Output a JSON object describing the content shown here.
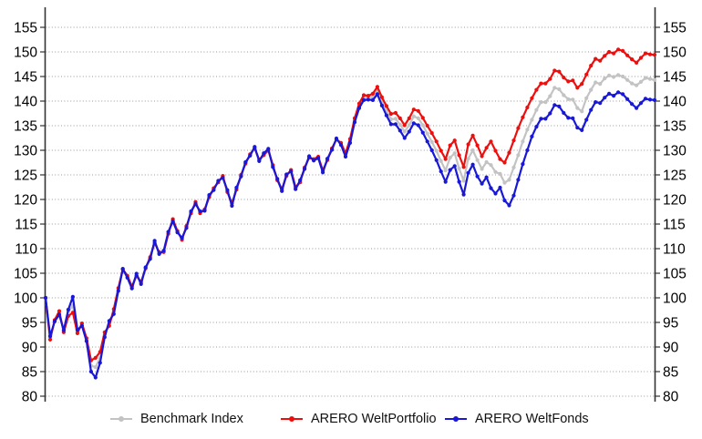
{
  "chart_data": {
    "type": "line",
    "title": "",
    "xlabel": "",
    "ylabel": "",
    "x_axis": {
      "labels_visible": false
    },
    "y_axis": {
      "min": 80,
      "max": 155,
      "tick_step": 5,
      "ticks": [
        80,
        85,
        90,
        95,
        100,
        105,
        110,
        115,
        120,
        125,
        130,
        135,
        140,
        145,
        150,
        155
      ],
      "labels_both_sides": true
    },
    "grid": {
      "horizontal": true,
      "style": "dotted",
      "color": "#999999"
    },
    "legend_position": "bottom",
    "marker": "circle",
    "series": [
      {
        "name": "Benchmark Index",
        "color": "#c3c3c3",
        "values": [
          100,
          92.1,
          95.3,
          97.1,
          93.1,
          97.2,
          98.4,
          93.1,
          94.6,
          91.4,
          86.2,
          85.9,
          87.8,
          92.5,
          94.7,
          97.2,
          101.8,
          105.8,
          104.2,
          102,
          104.6,
          103,
          106,
          108,
          111.3,
          109,
          109.4,
          113.1,
          115.8,
          113.4,
          112,
          114.3,
          117.4,
          119.2,
          117.4,
          117.8,
          120.6,
          122,
          123.6,
          124.5,
          121.6,
          118.9,
          122.1,
          124.8,
          127.4,
          129,
          130.5,
          127.9,
          129.1,
          130.1,
          126.7,
          124,
          121.8,
          124.9,
          125.8,
          122.2,
          123.6,
          126.3,
          128.6,
          128,
          128.5,
          125.6,
          128.1,
          130.2,
          132.3,
          131.2,
          129,
          131.9,
          136.1,
          139,
          140.7,
          140.8,
          140.8,
          142.1,
          139.9,
          138,
          136.3,
          136.4,
          135.2,
          133.8,
          135.1,
          136.9,
          136.5,
          135.1,
          133.4,
          131.7,
          129.9,
          127.8,
          125.9,
          128.5,
          129.4,
          126.3,
          123.8,
          128.3,
          130,
          128,
          126.2,
          127.6,
          127,
          125.6,
          125.2,
          123.4,
          124,
          126.5,
          129,
          131.8,
          134.2,
          136.2,
          138.2,
          139.8,
          139.8,
          141,
          142.7,
          142.4,
          141.2,
          140.4,
          140.3,
          138.6,
          137.9,
          140.6,
          142.3,
          143.8,
          143.5,
          144.6,
          145.2,
          144.9,
          145.3,
          145,
          144.3,
          143.6,
          143.2,
          143.9,
          144.7,
          144.5,
          144.3
        ]
      },
      {
        "name": "ARERO WeltPortfolio",
        "color": "#ed0e0e",
        "values": [
          100,
          91.5,
          95.5,
          97.3,
          93,
          96.3,
          97,
          92.8,
          94.8,
          91.8,
          87.3,
          87.8,
          89,
          93,
          94.3,
          97.7,
          102,
          105.8,
          104.5,
          102.3,
          104.5,
          103.2,
          106,
          108.3,
          111.2,
          109.3,
          109.3,
          113,
          116,
          113.6,
          111.8,
          114.6,
          117.2,
          119.5,
          117.2,
          118,
          120.5,
          122.3,
          123.5,
          124.8,
          121.5,
          119.2,
          122,
          125,
          127.3,
          129.2,
          130.4,
          128.1,
          129,
          130,
          127,
          123.9,
          122.1,
          124.8,
          126,
          122.5,
          123.5,
          126.5,
          128.5,
          128.2,
          128.7,
          125.9,
          128,
          130.4,
          132.2,
          131.5,
          129.4,
          132.3,
          136.5,
          139.5,
          141.2,
          141.1,
          141.5,
          142.9,
          140.8,
          139,
          137.4,
          137.6,
          136.5,
          135.1,
          136.5,
          138.3,
          138,
          136.6,
          135,
          133.5,
          131.8,
          129.9,
          128.2,
          131,
          132,
          129,
          126.6,
          131.2,
          133,
          131,
          128.8,
          130.5,
          131.8,
          129.9,
          128.2,
          127.5,
          129.5,
          132,
          134.5,
          136.7,
          138.7,
          140.6,
          142.3,
          143.6,
          143.6,
          144.5,
          146.2,
          146,
          144.8,
          144,
          144.2,
          142.7,
          143.5,
          145.4,
          147.2,
          148.6,
          148.2,
          149.2,
          150,
          149.7,
          150.5,
          150.2,
          149.3,
          148.5,
          147.8,
          148.8,
          149.7,
          149.5,
          149.4
        ]
      },
      {
        "name": "ARERO WeltFonds",
        "color": "#1818d6",
        "values": [
          100,
          92.2,
          95.2,
          96.6,
          93.4,
          97.6,
          100.2,
          93.5,
          94.3,
          91.2,
          85,
          83.8,
          86.8,
          92,
          95.3,
          96.7,
          101.4,
          105.9,
          104.1,
          101.9,
          104.9,
          102.8,
          106.2,
          107.9,
          111.6,
          108.9,
          109.6,
          113.4,
          115.6,
          113.3,
          112.2,
          114.2,
          117.6,
          119.1,
          117.6,
          117.7,
          120.9,
          121.9,
          123.8,
          124.4,
          121.9,
          118.7,
          122.4,
          124.7,
          127.6,
          128.9,
          130.7,
          127.8,
          129.4,
          130.3,
          126.6,
          124.2,
          121.7,
          125.1,
          125.7,
          122.1,
          123.9,
          126.2,
          128.8,
          127.9,
          128.4,
          125.5,
          128.3,
          130.1,
          132.4,
          131.1,
          128.7,
          131.5,
          135.7,
          138.6,
          140.2,
          140.3,
          140.2,
          141.4,
          139.1,
          137.1,
          135.3,
          135.3,
          134,
          132.5,
          133.8,
          135.5,
          135.1,
          133.6,
          131.8,
          130,
          128,
          125.7,
          123.6,
          126,
          126.8,
          123.6,
          121,
          125.4,
          127.1,
          124.7,
          123.2,
          124.5,
          122.3,
          121.2,
          122.4,
          119.8,
          118.8,
          120.8,
          124,
          127.2,
          130,
          132.8,
          134.8,
          136.4,
          136.4,
          137.5,
          139.2,
          138.9,
          137.6,
          136.6,
          136.5,
          134.6,
          134.1,
          136.2,
          138.2,
          139.8,
          139.6,
          140.7,
          141.5,
          141.1,
          141.8,
          141.4,
          140.4,
          139.4,
          138.6,
          139.6,
          140.5,
          140.3,
          140.2
        ]
      }
    ]
  },
  "legend": {
    "items": [
      "Benchmark Index",
      "ARERO WeltPortfolio",
      "ARERO WeltFonds"
    ]
  },
  "colors": {
    "background": "#ffffff",
    "axis": "#333333",
    "grid": "#999999",
    "tick_text": "#000000"
  }
}
